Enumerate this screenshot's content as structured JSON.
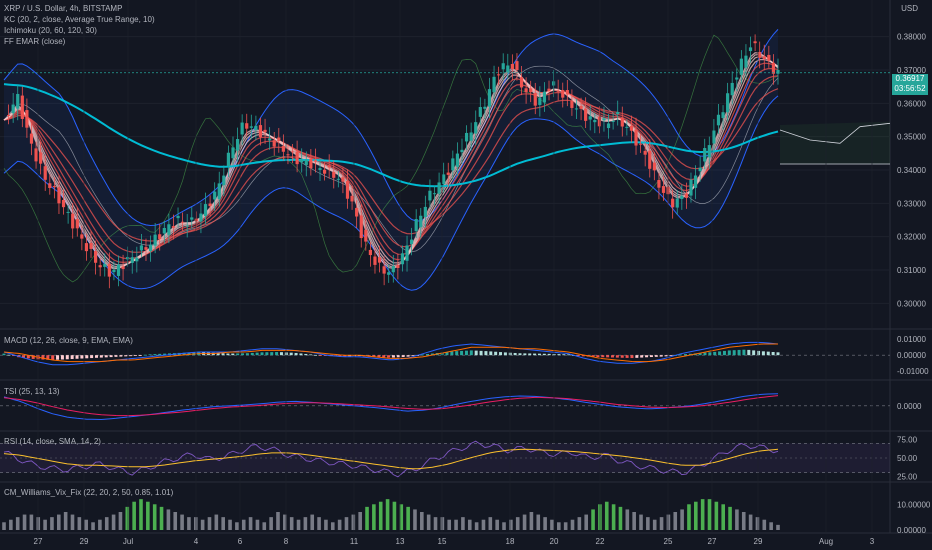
{
  "header": {
    "symbol": "XRP / U.S. Dollar, 4h, BITSTAMP",
    "kc": "KC (20, 2, close, Average True Range, 10)",
    "ichimoku": "Ichimoku (20, 60, 120, 30)",
    "emar": "FF EMAR (close)",
    "currency": "USD"
  },
  "price": {
    "last": "0.36917",
    "countdown": "03:56:52",
    "last_color": "#26a69a"
  },
  "panes": {
    "macd": "MACD (12, 26, close, 9, EMA, EMA)",
    "tsi": "TSI (25, 13, 13)",
    "rsi": "RSI (14, close, SMA, 14, 2)",
    "vix": "CM_Williams_Vix_Fix (22, 20, 2, 50, 0.85, 1.01)"
  },
  "chart_data": {
    "type": "line",
    "title": "XRP / U.S. Dollar, 4h, BITSTAMP",
    "xlabel": "",
    "ylabel": "USD",
    "x_ticks": [
      "27",
      "29",
      "Jul",
      "4",
      "6",
      "8",
      "11",
      "13",
      "15",
      "18",
      "20",
      "22",
      "25",
      "27",
      "29",
      "Aug",
      "3"
    ],
    "y_ticks": [
      "0.38000",
      "0.37000",
      "0.36000",
      "0.35000",
      "0.34000",
      "0.33000",
      "0.32000",
      "0.31000",
      "0.30000"
    ],
    "ylim": [
      0.295,
      0.385
    ],
    "series": [
      {
        "values": [
          0.355,
          0.362,
          0.348,
          0.338,
          0.332,
          0.325,
          0.318,
          0.312,
          0.309,
          0.312,
          0.315,
          0.318,
          0.322,
          0.325,
          0.324,
          0.328,
          0.334,
          0.346,
          0.354,
          0.352,
          0.349,
          0.346,
          0.343,
          0.342,
          0.34,
          0.338,
          0.331,
          0.318,
          0.311,
          0.309,
          0.315,
          0.325,
          0.333,
          0.338,
          0.345,
          0.352,
          0.36,
          0.37,
          0.372,
          0.364,
          0.36,
          0.366,
          0.362,
          0.358,
          0.355,
          0.354,
          0.356,
          0.351,
          0.345,
          0.336,
          0.33,
          0.332,
          0.34,
          0.35,
          0.36,
          0.37,
          0.378,
          0.373,
          0.369
        ]
      }
    ],
    "macd": {
      "y_ticks": [
        "0.01000",
        "0.00000",
        "-0.01000"
      ],
      "ylim": [
        -0.013,
        0.012
      ],
      "histogram": [
        0.001,
        -0.0015,
        -0.0025,
        -0.003,
        -0.0025,
        -0.002,
        -0.0015,
        -0.001,
        -0.0005,
        0.0005,
        0.001,
        0.0015,
        0.0018,
        0.0015,
        0.001,
        0.0012,
        0.0018,
        0.002,
        0.0015,
        0.0005,
        -0.0005,
        -0.0008,
        -0.0005,
        -0.0012,
        -0.0015,
        -0.001,
        0.0005,
        0.0015,
        0.0025,
        0.003,
        0.0025,
        0.0018,
        0.0012,
        0.001,
        0.0008,
        0.0005,
        -0.0008,
        -0.0012,
        -0.0015,
        -0.0018,
        -0.0012,
        -0.0008,
        0.0005,
        0.0012,
        0.002,
        0.003,
        0.0035,
        0.0025,
        0.0018
      ],
      "macd": [
        0.002,
        -0.001,
        -0.004,
        -0.006,
        -0.006,
        -0.005,
        -0.004,
        -0.003,
        -0.002,
        -0.001,
        0.0,
        0.001,
        0.002,
        0.002,
        0.002,
        0.003,
        0.004,
        0.004,
        0.003,
        0.002,
        0.0,
        -0.001,
        -0.001,
        -0.002,
        -0.003,
        -0.002,
        0.001,
        0.004,
        0.006,
        0.007,
        0.006,
        0.005,
        0.004,
        0.003,
        0.002,
        0.001,
        -0.002,
        -0.004,
        -0.005,
        -0.005,
        -0.004,
        -0.002,
        0.001,
        0.003,
        0.005,
        0.007,
        0.008,
        0.008,
        0.007
      ],
      "signal": [
        0.002,
        0.001,
        -0.001,
        -0.003,
        -0.004,
        -0.004,
        -0.004,
        -0.003,
        -0.003,
        -0.002,
        -0.001,
        0.0,
        0.001,
        0.001,
        0.002,
        0.002,
        0.003,
        0.003,
        0.003,
        0.002,
        0.001,
        0.0,
        0.0,
        -0.001,
        -0.002,
        -0.002,
        -0.001,
        0.001,
        0.003,
        0.005,
        0.005,
        0.005,
        0.004,
        0.004,
        0.003,
        0.002,
        0.0,
        -0.002,
        -0.003,
        -0.004,
        -0.004,
        -0.003,
        -0.001,
        0.001,
        0.003,
        0.005,
        0.006,
        0.007,
        0.007
      ]
    },
    "tsi": {
      "y_ticks": [
        "0.0000"
      ],
      "ylim": [
        -0.5,
        0.4
      ],
      "tsi": [
        0.2,
        0.1,
        -0.05,
        -0.18,
        -0.26,
        -0.3,
        -0.31,
        -0.28,
        -0.24,
        -0.2,
        -0.15,
        -0.1,
        -0.06,
        -0.02,
        0.0,
        0.02,
        0.05,
        0.08,
        0.1,
        0.08,
        0.05,
        0.02,
        -0.01,
        -0.04,
        -0.08,
        -0.12,
        -0.1,
        -0.05,
        0.03,
        0.1,
        0.16,
        0.2,
        0.22,
        0.21,
        0.18,
        0.14,
        0.08,
        0.03,
        -0.02,
        -0.05,
        -0.07,
        -0.05,
        -0.02,
        0.02,
        0.08,
        0.15,
        0.22,
        0.26,
        0.27
      ],
      "signal": [
        0.18,
        0.14,
        0.07,
        -0.02,
        -0.1,
        -0.16,
        -0.2,
        -0.22,
        -0.22,
        -0.2,
        -0.17,
        -0.14,
        -0.1,
        -0.06,
        -0.03,
        -0.01,
        0.01,
        0.04,
        0.06,
        0.07,
        0.06,
        0.04,
        0.02,
        0.0,
        -0.03,
        -0.06,
        -0.08,
        -0.07,
        -0.03,
        0.02,
        0.08,
        0.13,
        0.17,
        0.19,
        0.18,
        0.16,
        0.12,
        0.08,
        0.03,
        0.0,
        -0.03,
        -0.04,
        -0.03,
        -0.01,
        0.03,
        0.08,
        0.14,
        0.19,
        0.23
      ]
    },
    "rsi": {
      "y_ticks": [
        "75.00",
        "50.00",
        "25.00"
      ],
      "ylim": [
        20,
        80
      ],
      "rsi": [
        58,
        48,
        40,
        36,
        34,
        38,
        42,
        36,
        30,
        35,
        44,
        50,
        55,
        48,
        52,
        60,
        66,
        62,
        54,
        50,
        46,
        43,
        40,
        36,
        32,
        28,
        34,
        46,
        56,
        64,
        70,
        66,
        60,
        64,
        58,
        55,
        58,
        50,
        54,
        46,
        40,
        36,
        32,
        30,
        38,
        50,
        62,
        68,
        64,
        60
      ],
      "ma": [
        56,
        54,
        50,
        46,
        42,
        40,
        40,
        39,
        38,
        38,
        40,
        43,
        46,
        48,
        50,
        52,
        55,
        57,
        57,
        55,
        52,
        49,
        46,
        43,
        40,
        37,
        35,
        37,
        41,
        47,
        53,
        58,
        61,
        62,
        61,
        60,
        59,
        57,
        55,
        53,
        50,
        47,
        43,
        40,
        40,
        44,
        50,
        56,
        60,
        62
      ]
    },
    "vix": {
      "y_ticks": [
        "10.00000",
        "0.00000"
      ],
      "ylim": [
        0,
        14
      ],
      "values": [
        3,
        4,
        5,
        6,
        6,
        5,
        4,
        5,
        6,
        7,
        6,
        5,
        4,
        3,
        4,
        5,
        6,
        7,
        9,
        11,
        12,
        11,
        10,
        9,
        8,
        7,
        6,
        5,
        5,
        4,
        5,
        6,
        5,
        4,
        3,
        4,
        5,
        4,
        3,
        5,
        7,
        6,
        5,
        4,
        5,
        6,
        5,
        4,
        3,
        4,
        5,
        6,
        7,
        9,
        10,
        11,
        12,
        11,
        10,
        9,
        8,
        7,
        6,
        5,
        5,
        4,
        4,
        5,
        4,
        3,
        4,
        5,
        4,
        3,
        4,
        5,
        6,
        7,
        6,
        5,
        4,
        3,
        3,
        4,
        5,
        6,
        8,
        10,
        11,
        10,
        9,
        8,
        7,
        6,
        5,
        4,
        5,
        6,
        7,
        8,
        10,
        11,
        12,
        12,
        11,
        10,
        9,
        8,
        7,
        6,
        5,
        4,
        3,
        2
      ],
      "highlight": [
        0,
        0,
        0,
        0,
        0,
        0,
        0,
        0,
        0,
        0,
        0,
        0,
        0,
        0,
        0,
        0,
        0,
        0,
        1,
        1,
        1,
        1,
        1,
        1,
        0,
        0,
        0,
        0,
        0,
        0,
        0,
        0,
        0,
        0,
        0,
        0,
        0,
        0,
        0,
        0,
        0,
        0,
        0,
        0,
        0,
        0,
        0,
        0,
        0,
        0,
        0,
        0,
        0,
        1,
        1,
        1,
        1,
        1,
        1,
        1,
        0,
        0,
        0,
        0,
        0,
        0,
        0,
        0,
        0,
        0,
        0,
        0,
        0,
        0,
        0,
        0,
        0,
        0,
        0,
        0,
        0,
        0,
        0,
        0,
        0,
        0,
        1,
        1,
        1,
        1,
        1,
        0,
        0,
        0,
        0,
        0,
        0,
        0,
        0,
        0,
        1,
        1,
        1,
        1,
        1,
        1,
        1,
        0,
        0,
        0,
        0,
        0,
        0,
        0
      ]
    }
  },
  "colors": {
    "up": "#26a69a",
    "down": "#ef5350",
    "kc_band": "#2962ff",
    "ma_long": "#00bcd4",
    "macd_line": "#2962ff",
    "signal_line": "#ff6d00",
    "rsi_line": "#7e57c2",
    "rsi_ma": "#fbc02d",
    "vix_hi": "#4caf50",
    "vix_lo": "#787b86"
  }
}
